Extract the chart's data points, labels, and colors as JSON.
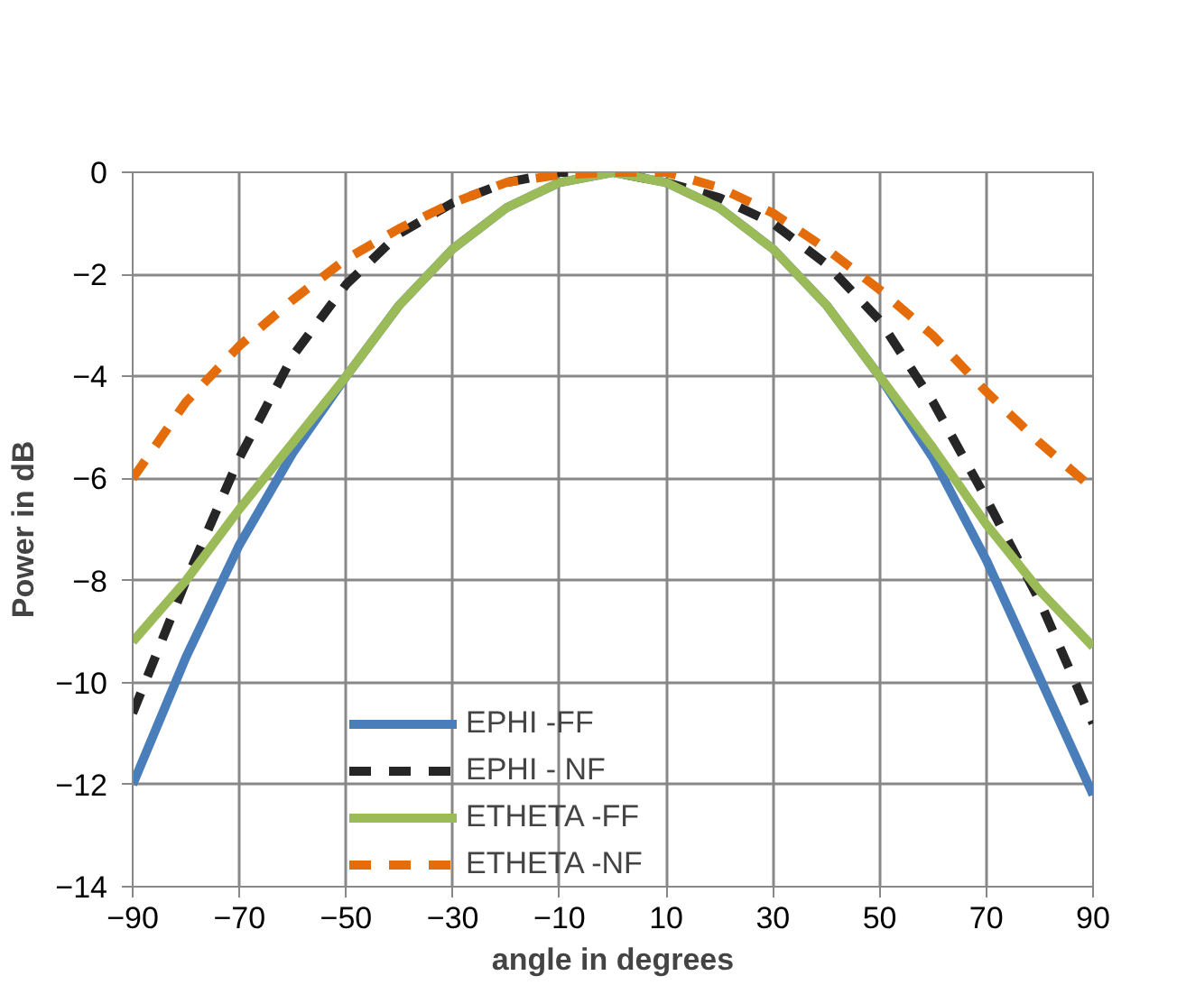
{
  "chart_data": {
    "type": "line",
    "xlabel": "angle in degrees",
    "ylabel": "Power in dB",
    "x": [
      -90,
      -80,
      -70,
      -60,
      -50,
      -40,
      -30,
      -20,
      -10,
      0,
      10,
      20,
      30,
      40,
      50,
      60,
      70,
      80,
      90
    ],
    "series": [
      {
        "name": "EPHI -FF",
        "color": "#4a7ebb",
        "line_style": "solid",
        "values": [
          -12,
          -9.5,
          -7.3,
          -5.5,
          -4,
          -2.6,
          -1.5,
          -0.7,
          -0.2,
          0,
          -0.2,
          -0.7,
          -1.5,
          -2.6,
          -4,
          -5.6,
          -7.6,
          -9.9,
          -12.2
        ]
      },
      {
        "name": "EPHI - NF",
        "color": "#262626",
        "line_style": "dashed",
        "values": [
          -10.6,
          -8,
          -5.6,
          -3.6,
          -2.2,
          -1.2,
          -0.6,
          -0.2,
          0,
          0,
          -0.2,
          -0.5,
          -1,
          -1.8,
          -2.9,
          -4.5,
          -6.4,
          -8.4,
          -10.8
        ]
      },
      {
        "name": "ETHETA -FF",
        "color": "#9bbb59",
        "line_style": "solid",
        "values": [
          -9.2,
          -8,
          -6.6,
          -5.3,
          -4,
          -2.6,
          -1.5,
          -0.7,
          -0.2,
          0,
          -0.2,
          -0.7,
          -1.5,
          -2.6,
          -4,
          -5.4,
          -6.9,
          -8.2,
          -9.3
        ]
      },
      {
        "name": "ETHETA -NF",
        "color": "#e46c0a",
        "line_style": "dashed",
        "values": [
          -6,
          -4.5,
          -3.4,
          -2.5,
          -1.7,
          -1.1,
          -0.6,
          -0.2,
          -0.05,
          0,
          0,
          -0.3,
          -0.8,
          -1.5,
          -2.3,
          -3.2,
          -4.3,
          -5.3,
          -6.2
        ]
      }
    ],
    "xlim": [
      -90,
      90
    ],
    "xticks": [
      -90,
      -70,
      -50,
      -30,
      -10,
      10,
      30,
      50,
      70,
      90
    ],
    "ylim": [
      -14,
      0
    ],
    "yticks": [
      -14,
      -12,
      -10,
      -8,
      -6,
      -4,
      -2,
      0
    ],
    "grid": true,
    "legend": "bottom",
    "marker": "none"
  }
}
